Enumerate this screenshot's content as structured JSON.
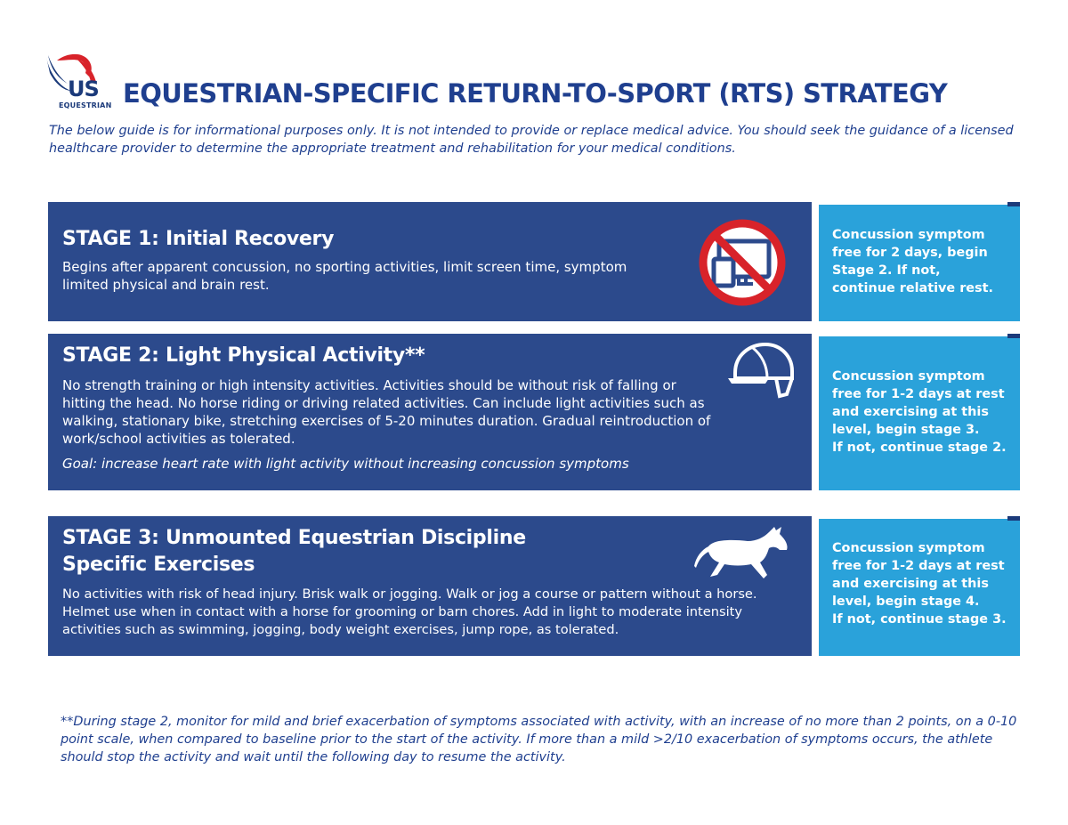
{
  "logo": {
    "mark": "US",
    "wordmark": "EQUESTRIAN"
  },
  "title": "EQUESTRIAN-SPECIFIC RETURN-TO-SPORT (RTS) STRATEGY",
  "disclaimer": "The below guide is for informational purposes only. It is not intended to provide or replace medical advice. You should seek the guidance of a licensed healthcare provider to determine the appropriate treatment and rehabilitation for your medical conditions.",
  "stages": [
    {
      "title": "STAGE 1: Initial Recovery",
      "description": "Begins after apparent concussion, no sporting activities, limit screen time, symptom limited physical and brain rest.",
      "icon": "no-screens-icon",
      "next_step": "Concussion symptom free for 2 days, begin Stage 2. If not, continue relative rest."
    },
    {
      "title": "STAGE 2: Light Physical Activity**",
      "description": "No strength training or high intensity activities. Activities should be without risk of falling or hitting the head. No horse riding or driving related activities. Can include light activities such as walking, stationary bike, stretching exercises of 5-20 minutes duration. Gradual reintroduction of work/school activities as tolerated.",
      "goal": "Goal: increase heart rate with light activity without increasing concussion symptoms",
      "icon": "riding-helmet-icon",
      "next_step_1": "Concussion symptom free for 1-2 days at rest and exercising at this level, begin stage 3.",
      "next_step_2": "If not, continue stage 2."
    },
    {
      "title_line1": "STAGE 3: Unmounted Equestrian Discipline",
      "title_line2": "Specific Exercises",
      "description": "No activities with risk of head injury. Brisk walk or jogging. Walk or jog a course or pattern without a horse. Helmet use when in contact with a horse for grooming or barn chores. Add in light to moderate intensity activities such as swimming, jogging, body weight exercises, jump rope, as tolerated.",
      "icon": "trotting-horse-icon",
      "next_step_1": "Concussion symptom free for 1-2 days at rest and exercising at this level, begin stage 4.",
      "next_step_2": "If not, continue stage 3."
    }
  ],
  "footnote": "**During stage 2, monitor for mild and brief exacerbation of symptoms associated with activity, with an increase of no more than 2 points, on a 0-10 point scale, when compared to baseline prior to the start of the activity. If more than a mild >2/10 exacerbation of symptoms occurs, the athlete should stop the activity and wait until the following day to resume the activity.",
  "colors": {
    "navy": "#2c4a8c",
    "light_blue": "#2aa2da",
    "title_blue": "#1f3f8f",
    "logo_red": "#d8232a"
  }
}
